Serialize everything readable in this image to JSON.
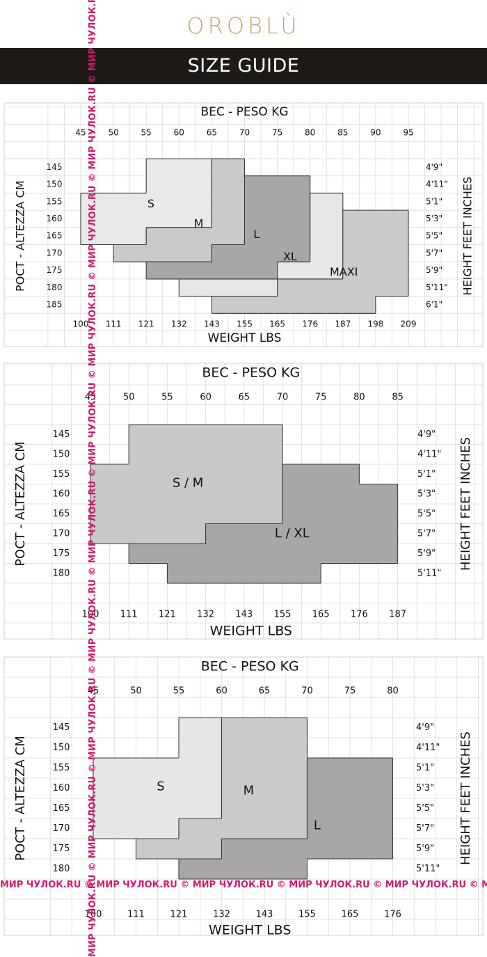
{
  "brand": "OROBLÙ",
  "banner": "SIZE GUIDE",
  "watermark": "МИР ЧУЛОК.RU © МИР ЧУЛОК.RU © МИР ЧУЛОК.RU © МИР ЧУЛОК.RU © МИР ЧУЛОК.RU © МИР ЧУЛОК.RU © МИР ЧУЛОК.RU © МИР ЧУЛОК.RU © МИР ЧУЛОК.RU © МИР ЧУЛОК.RU © МИР ЧУЛОК.RU © МИР ЧУЛОК.RU © МИР ЧУЛОК.RU © МИР ЧУЛОК.RU © МИР ЧУЛОК.RU © МИР ЧУЛОК.RU ©",
  "chart_data": [
    {
      "type": "heatmap",
      "title": "ВЕС - PESO KG",
      "xlabel": "WEIGHT LBS",
      "ylabel_left": "РОСТ - ALTEZZA CM",
      "ylabel_right": "HEIGHT FEET INCHES",
      "weight_kg": [
        "45",
        "50",
        "55",
        "60",
        "65",
        "70",
        "75",
        "80",
        "85",
        "90",
        "95"
      ],
      "weight_lbs": [
        "100",
        "111",
        "121",
        "132",
        "143",
        "155",
        "165",
        "176",
        "187",
        "198",
        "209"
      ],
      "height_cm": [
        "145",
        "150",
        "155",
        "160",
        "165",
        "170",
        "175",
        "180",
        "185"
      ],
      "height_ft": [
        "4'9\"",
        "4'11\"",
        "5'1\"",
        "5'3\"",
        "5'5\"",
        "5'7\"",
        "5'9\"",
        "5'11\"",
        "6'1\""
      ],
      "sizes": [
        {
          "label": "S",
          "color": "#e9e9e9",
          "spans": [
            {
              "cm": "145",
              "kg": [
                "55",
                "65"
              ]
            },
            {
              "cm": "150",
              "kg": [
                "55",
                "65"
              ]
            },
            {
              "cm": "155",
              "kg": [
                "45",
                "65"
              ]
            },
            {
              "cm": "160",
              "kg": [
                "45",
                "65"
              ]
            },
            {
              "cm": "165",
              "kg": [
                "45",
                "55"
              ]
            }
          ]
        },
        {
          "label": "M",
          "color": "#cbc9ca",
          "spans": [
            {
              "cm": "145",
              "kg": [
                "65",
                "70"
              ]
            },
            {
              "cm": "150",
              "kg": [
                "65",
                "70"
              ]
            },
            {
              "cm": "155",
              "kg": [
                "65",
                "70"
              ]
            },
            {
              "cm": "160",
              "kg": [
                "65",
                "70"
              ]
            },
            {
              "cm": "165",
              "kg": [
                "55",
                "70"
              ]
            },
            {
              "cm": "170",
              "kg": [
                "50",
                "65"
              ]
            }
          ]
        },
        {
          "label": "L",
          "color": "#a8a6a7",
          "spans": [
            {
              "cm": "150",
              "kg": [
                "70",
                "80"
              ]
            },
            {
              "cm": "155",
              "kg": [
                "70",
                "80"
              ]
            },
            {
              "cm": "160",
              "kg": [
                "70",
                "80"
              ]
            },
            {
              "cm": "165",
              "kg": [
                "70",
                "80"
              ]
            },
            {
              "cm": "170",
              "kg": [
                "65",
                "80"
              ]
            },
            {
              "cm": "175",
              "kg": [
                "55",
                "75"
              ]
            }
          ]
        },
        {
          "label": "XL",
          "color": "#e7e7e7",
          "spans": [
            {
              "cm": "155",
              "kg": [
                "80",
                "85"
              ]
            },
            {
              "cm": "160",
              "kg": [
                "80",
                "85"
              ]
            },
            {
              "cm": "165",
              "kg": [
                "80",
                "85"
              ]
            },
            {
              "cm": "170",
              "kg": [
                "80",
                "85"
              ]
            },
            {
              "cm": "175",
              "kg": [
                "75",
                "85"
              ]
            },
            {
              "cm": "180",
              "kg": [
                "60",
                "75"
              ]
            }
          ]
        },
        {
          "label": "MAXI",
          "color": "#cbc9ca",
          "spans": [
            {
              "cm": "160",
              "kg": [
                "85",
                "95"
              ]
            },
            {
              "cm": "165",
              "kg": [
                "85",
                "95"
              ]
            },
            {
              "cm": "170",
              "kg": [
                "85",
                "95"
              ]
            },
            {
              "cm": "175",
              "kg": [
                "85",
                "95"
              ]
            },
            {
              "cm": "180",
              "kg": [
                "75",
                "95"
              ]
            },
            {
              "cm": "185",
              "kg": [
                "65",
                "90"
              ]
            }
          ]
        }
      ]
    },
    {
      "type": "heatmap",
      "title": "ВЕС - PESO KG",
      "xlabel": "WEIGHT LBS",
      "ylabel_left": "РОСТ - ALTEZZA CM",
      "ylabel_right": "HEIGHT FEET INCHES",
      "weight_kg": [
        "45",
        "50",
        "55",
        "60",
        "65",
        "70",
        "75",
        "80",
        "85"
      ],
      "weight_lbs": [
        "100",
        "111",
        "121",
        "132",
        "143",
        "155",
        "165",
        "176",
        "187"
      ],
      "height_cm": [
        "145",
        "150",
        "155",
        "160",
        "165",
        "170",
        "175",
        "180"
      ],
      "height_ft": [
        "4'9\"",
        "4'11\"",
        "5'1\"",
        "5'3\"",
        "5'5\"",
        "5'7\"",
        "5'9\"",
        "5'11\""
      ],
      "sizes": [
        {
          "label": "S / M",
          "color": "#c8c8c8",
          "spans": [
            {
              "cm": "145",
              "kg": [
                "50",
                "70"
              ]
            },
            {
              "cm": "150",
              "kg": [
                "50",
                "70"
              ]
            },
            {
              "cm": "155",
              "kg": [
                "45",
                "70"
              ]
            },
            {
              "cm": "160",
              "kg": [
                "45",
                "70"
              ]
            },
            {
              "cm": "165",
              "kg": [
                "45",
                "70"
              ]
            },
            {
              "cm": "170",
              "kg": [
                "45",
                "60"
              ]
            }
          ]
        },
        {
          "label": "L / XL",
          "color": "#a8a6a7",
          "spans": [
            {
              "cm": "155",
              "kg": [
                "70",
                "80"
              ]
            },
            {
              "cm": "160",
              "kg": [
                "70",
                "85"
              ]
            },
            {
              "cm": "165",
              "kg": [
                "70",
                "85"
              ]
            },
            {
              "cm": "170",
              "kg": [
                "60",
                "85"
              ]
            },
            {
              "cm": "175",
              "kg": [
                "50",
                "85"
              ]
            },
            {
              "cm": "180",
              "kg": [
                "55",
                "75"
              ]
            }
          ]
        }
      ]
    },
    {
      "type": "heatmap",
      "title": "ВЕС - PESO KG",
      "xlabel": "WEIGHT LBS",
      "ylabel_left": "РОСТ - ALTEZZA CM",
      "ylabel_right": "HEIGHT FEET INCHES",
      "weight_kg": [
        "45",
        "50",
        "55",
        "60",
        "65",
        "70",
        "75",
        "80"
      ],
      "weight_lbs": [
        "100",
        "111",
        "121",
        "132",
        "143",
        "155",
        "165",
        "176"
      ],
      "height_cm": [
        "145",
        "150",
        "155",
        "160",
        "165",
        "170",
        "175",
        "180"
      ],
      "height_ft": [
        "4'9\"",
        "4'11\"",
        "5'1\"",
        "5'3\"",
        "5'5\"",
        "5'7\"",
        "5'9\"",
        "5'11\""
      ],
      "sizes": [
        {
          "label": "S",
          "color": "#e6e6e6",
          "spans": [
            {
              "cm": "145",
              "kg": [
                "55",
                "60"
              ]
            },
            {
              "cm": "150",
              "kg": [
                "55",
                "60"
              ]
            },
            {
              "cm": "155",
              "kg": [
                "45",
                "60"
              ]
            },
            {
              "cm": "160",
              "kg": [
                "45",
                "60"
              ]
            },
            {
              "cm": "165",
              "kg": [
                "45",
                "60"
              ]
            },
            {
              "cm": "170",
              "kg": [
                "45",
                "55"
              ]
            }
          ]
        },
        {
          "label": "M",
          "color": "#cbc9ca",
          "spans": [
            {
              "cm": "145",
              "kg": [
                "60",
                "70"
              ]
            },
            {
              "cm": "150",
              "kg": [
                "60",
                "70"
              ]
            },
            {
              "cm": "155",
              "kg": [
                "60",
                "70"
              ]
            },
            {
              "cm": "160",
              "kg": [
                "60",
                "70"
              ]
            },
            {
              "cm": "165",
              "kg": [
                "60",
                "70"
              ]
            },
            {
              "cm": "170",
              "kg": [
                "55",
                "70"
              ]
            },
            {
              "cm": "175",
              "kg": [
                "50",
                "60"
              ]
            }
          ]
        },
        {
          "label": "L",
          "color": "#a8a6a7",
          "spans": [
            {
              "cm": "155",
              "kg": [
                "70",
                "80"
              ]
            },
            {
              "cm": "160",
              "kg": [
                "70",
                "80"
              ]
            },
            {
              "cm": "165",
              "kg": [
                "70",
                "80"
              ]
            },
            {
              "cm": "170",
              "kg": [
                "70",
                "80"
              ]
            },
            {
              "cm": "175",
              "kg": [
                "60",
                "80"
              ]
            },
            {
              "cm": "180",
              "kg": [
                "55",
                "70"
              ]
            }
          ]
        }
      ]
    }
  ]
}
